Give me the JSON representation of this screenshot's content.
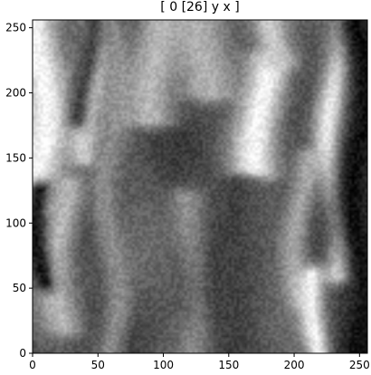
{
  "chart_data": {
    "type": "heatmap",
    "title": "[ 0 [26] y  x ]",
    "xlabel": "",
    "ylabel": "",
    "colormap": "gray",
    "xlim": [
      0,
      256
    ],
    "ylim": [
      0,
      256
    ],
    "x_ticks": [
      0,
      50,
      100,
      150,
      200,
      250
    ],
    "y_ticks": [
      0,
      50,
      100,
      150,
      200,
      250
    ],
    "x_tick_labels": [
      "0",
      "50",
      "100",
      "150",
      "200",
      "250"
    ],
    "y_tick_labels": [
      "0",
      "50",
      "100",
      "150",
      "200",
      "250"
    ],
    "grid": false,
    "legend": false,
    "value_range": [
      0,
      1
    ],
    "bright_bands": [
      {
        "x": 5,
        "y": [
          110,
          256
        ],
        "intensity": 0.97,
        "width": 14
      },
      {
        "x": 22,
        "y": [
          20,
          130
        ],
        "intensity": 0.72,
        "width": 10
      },
      {
        "x": 45,
        "y": [
          150,
          256
        ],
        "intensity": 0.82,
        "width": 9
      },
      {
        "x": 60,
        "y": [
          0,
          256
        ],
        "intensity": 0.55,
        "width": 8
      },
      {
        "x": 95,
        "y": [
          180,
          256
        ],
        "intensity": 0.72,
        "width": 14
      },
      {
        "x": 125,
        "y": [
          0,
          120
        ],
        "intensity": 0.58,
        "width": 10
      },
      {
        "x": 130,
        "y": [
          200,
          256
        ],
        "intensity": 0.7,
        "width": 14
      },
      {
        "x": 175,
        "y": [
          140,
          225
        ],
        "intensity": 0.97,
        "width": 12
      },
      {
        "x": 180,
        "y": [
          225,
          256
        ],
        "intensity": 0.8,
        "width": 10
      },
      {
        "x": 205,
        "y": [
          40,
          150
        ],
        "intensity": 0.65,
        "width": 8
      },
      {
        "x": 218,
        "y": [
          0,
          60
        ],
        "intensity": 0.95,
        "width": 7
      },
      {
        "x": 232,
        "y": [
          60,
          256
        ],
        "intensity": 0.98,
        "width": 8
      }
    ],
    "dark_bands": [
      {
        "x": 8,
        "y": [
          55,
          125
        ],
        "intensity": 0.08,
        "width": 6
      },
      {
        "x": 40,
        "y": [
          180,
          256
        ],
        "intensity": 0.25,
        "width": 6
      },
      {
        "x": 150,
        "y": [
          0,
          130
        ],
        "intensity": 0.25,
        "width": 14
      },
      {
        "x": 250,
        "y": [
          0,
          256
        ],
        "intensity": 0.06,
        "width": 12
      }
    ]
  }
}
